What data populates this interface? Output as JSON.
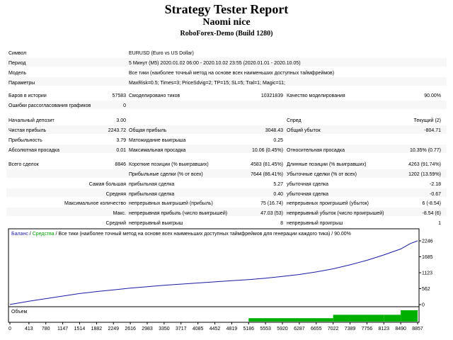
{
  "header": {
    "title": "Strategy Tester Report",
    "subtitle": "Naomi nice",
    "server": "RoboForex-Demo (Build 1280)"
  },
  "info": {
    "symbol_label": "Символ",
    "symbol_value": "EURUSD (Euro vs US Dollar)",
    "period_label": "Период",
    "period_value": "5 Минут (M5) 2020.01.02 06:00 - 2020.10.02 23:55 (2020.01.01 - 2020.10.05)",
    "model_label": "Модель",
    "model_value": "Все тики (наиболее точный метод на основе всех наименьших доступных таймфреймов)",
    "params_label": "Параметры",
    "params_value": "MaxRisk=0.5; Times=3; PriceSdvig=2; TP=15; SL=5; Tral=1; Magic=11;"
  },
  "model_stats": {
    "bars_label": "Баров в истории",
    "bars_value": "57583",
    "ticks_label": "Смоделировано тиков",
    "ticks_value": "10321839",
    "quality_label": "Качество моделирования",
    "quality_value": "90.00%",
    "errors_label": "Ошибки рассогласования графиков",
    "errors_value": "0"
  },
  "results": {
    "deposit_label": "Начальный депозит",
    "deposit_value": "3.00",
    "spread_label": "Спред",
    "spread_value": "Текущий (2)",
    "net_label": "Чистая прибыль",
    "net_value": "2243.72",
    "gross_profit_label": "Общая прибыль",
    "gross_profit_value": "3048.43",
    "gross_loss_label": "Общий убыток",
    "gross_loss_value": "-804.71",
    "pf_label": "Прибыльность",
    "pf_value": "3.79",
    "expected_label": "Матожидание выигрыша",
    "expected_value": "0.25",
    "abs_dd_label": "Абсолютная просадка",
    "abs_dd_value": "0.01",
    "max_dd_label": "Максимальная просадка",
    "max_dd_value": "10.06 (0.45%)",
    "rel_dd_label": "Относительная просадка",
    "rel_dd_value": "10.35% (0.77)",
    "trades_label": "Всего сделок",
    "trades_value": "8846",
    "short_label": "Короткие позиции (% выигравших)",
    "short_value": "4583 (81.45%)",
    "long_label": "Длинные позиции (% выигравших)",
    "long_value": "4263 (91.74%)",
    "profit_trades_label": "Прибыльные сделки (% от всех)",
    "profit_trades_value": "7644 (86.41%)",
    "loss_trades_label": "Убыточные сделки (% от всех)",
    "loss_trades_value": "1202 (13.59%)",
    "largest_label": "Самая большая",
    "largest_profit_label": "прибыльная сделка",
    "largest_profit_value": "5.27",
    "largest_loss_label": "убыточная сделка",
    "largest_loss_value": "-2.18",
    "average_label": "Средняя",
    "avg_profit_label": "прибыльная сделка",
    "avg_profit_value": "0.40",
    "avg_loss_label": "убыточная сделка",
    "avg_loss_value": "-0.67",
    "max_count_label": "Максимальное количество",
    "cons_wins_label": "непрерывных выигрышей (прибыль)",
    "cons_wins_value": "75 (16.74)",
    "cons_losses_label": "непрерывных проигрышей (убыток)",
    "cons_losses_value": "6 (-8.54)",
    "max_label": "Макс.",
    "cons_profit_label": "непрерывная прибыль (число выигрышей)",
    "cons_profit_value": "47.03 (53)",
    "cons_loss_label": "непрерывный убыток (число проигрышей)",
    "cons_loss_value": "-8.54 (6)",
    "avg2_label": "Средний",
    "avg_cons_wins_label": "непрерывный выигрыш",
    "avg_cons_wins_value": "8",
    "avg_cons_losses_label": "непрерывный проигрыш",
    "avg_cons_losses_value": "1"
  },
  "chart_data": {
    "type": "line",
    "legend": {
      "balance": "Баланс",
      "sep": " / ",
      "equity": "Средства",
      "rest": " / Все тики (наиболее точный метод на основе всех наименьших доступных таймфреймов для генерации каждого тика) / 90.00%"
    },
    "y_ticks": [
      0,
      562,
      1123,
      1685,
      2246
    ],
    "x_ticks": [
      0,
      413,
      780,
      1147,
      1514,
      1882,
      2249,
      2616,
      2983,
      3350,
      3717,
      4085,
      4452,
      4819,
      5186,
      5553,
      5920,
      6287,
      6655,
      7022,
      7389,
      7756,
      8123,
      8490,
      8857
    ],
    "ylim": [
      0,
      2246
    ],
    "xlim": [
      0,
      8857
    ],
    "x": [
      0,
      413,
      780,
      1147,
      1514,
      1882,
      2249,
      2616,
      2983,
      3350,
      3717,
      4085,
      4452,
      4819,
      5186,
      5553,
      5920,
      6287,
      6655,
      7022,
      7389,
      7756,
      8123,
      8490,
      8700,
      8857
    ],
    "balance": [
      3,
      120,
      210,
      300,
      390,
      460,
      520,
      580,
      630,
      680,
      720,
      760,
      800,
      840,
      880,
      930,
      990,
      1060,
      1150,
      1260,
      1400,
      1560,
      1750,
      1960,
      2150,
      2246
    ],
    "volume_label": "Объем",
    "volume_steps": [
      {
        "x_from": 5186,
        "x_to": 7022,
        "level": 0.3
      },
      {
        "x_from": 7022,
        "x_to": 8123,
        "level": 0.6
      },
      {
        "x_from": 8123,
        "x_to": 8490,
        "level": 0.6
      },
      {
        "x_from": 8490,
        "x_to": 8857,
        "level": 1.0
      }
    ],
    "colors": {
      "balance": "#1a1aa6",
      "equity": "#00a000",
      "volume": "#00b000",
      "text": "#000000"
    }
  }
}
